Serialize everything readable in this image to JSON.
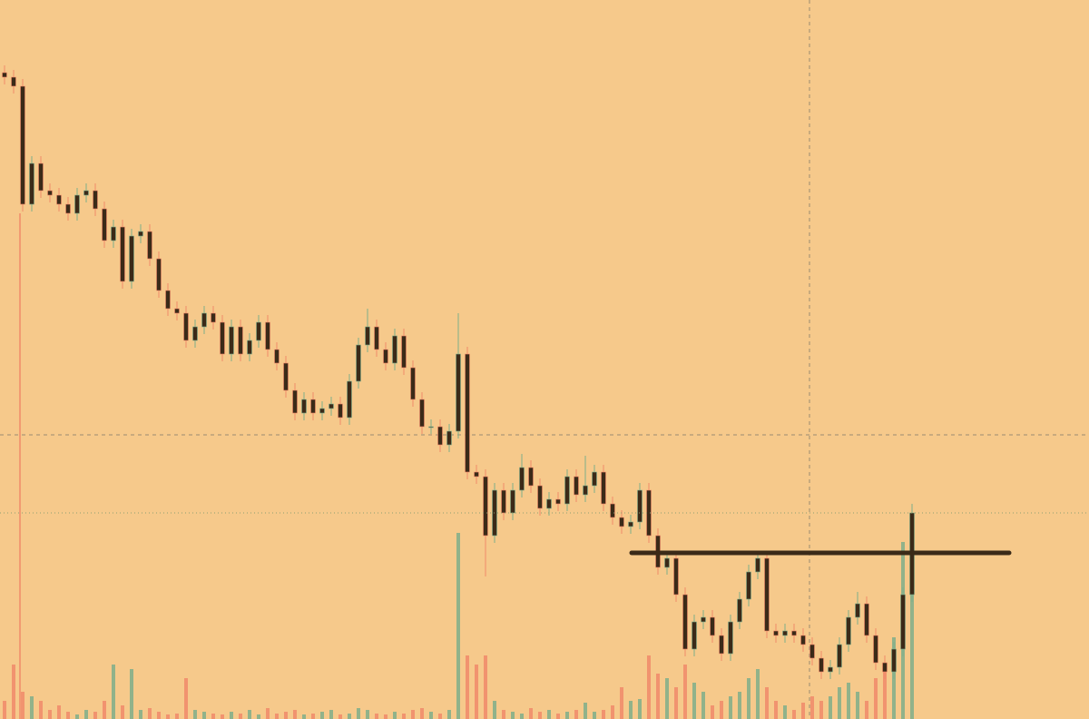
{
  "chart_data": {
    "type": "candlestick",
    "ylim": [
      0,
      792
    ],
    "vlim": [
      0,
      792
    ],
    "hline": 183,
    "up_color": "#7fae8a",
    "down_color": "#f08a6a",
    "body_color": "#3b2a18",
    "line_color": "#3b2a18",
    "open": [
      712,
      707,
      697,
      567,
      612,
      582,
      577,
      567,
      557,
      577,
      582,
      562,
      527,
      542,
      482,
      532,
      537,
      507,
      472,
      452,
      447,
      417,
      432,
      447,
      437,
      402,
      432,
      402,
      417,
      437,
      407,
      392,
      362,
      337,
      352,
      337,
      342,
      347,
      332,
      372,
      412,
      432,
      407,
      392,
      422,
      387,
      352,
      322,
      322,
      302,
      317,
      402,
      272,
      267,
      202,
      252,
      227,
      252,
      277,
      257,
      232,
      242,
      237,
      267,
      247,
      257,
      272,
      237,
      222,
      212,
      217,
      252,
      202,
      167,
      177,
      137,
      77,
      107,
      112,
      92,
      72,
      107,
      132,
      162,
      177,
      97,
      92,
      97,
      92,
      82,
      67,
      52,
      57,
      82,
      112,
      127,
      92,
      62,
      52,
      77,
      137
    ],
    "high": [
      720,
      715,
      705,
      620,
      620,
      590,
      585,
      575,
      585,
      590,
      590,
      570,
      550,
      550,
      540,
      545,
      545,
      515,
      480,
      460,
      455,
      440,
      455,
      455,
      445,
      440,
      440,
      425,
      445,
      445,
      415,
      400,
      370,
      360,
      360,
      350,
      355,
      355,
      380,
      420,
      452,
      440,
      415,
      430,
      430,
      395,
      360,
      330,
      330,
      325,
      447,
      410,
      280,
      275,
      260,
      260,
      260,
      292,
      285,
      265,
      250,
      250,
      275,
      275,
      290,
      280,
      280,
      245,
      230,
      225,
      260,
      260,
      210,
      185,
      185,
      145,
      115,
      120,
      120,
      100,
      115,
      140,
      170,
      185,
      185,
      105,
      105,
      105,
      100,
      90,
      75,
      65,
      90,
      120,
      140,
      135,
      100,
      70,
      85,
      145,
      237
    ],
    "low": [
      699,
      689,
      559,
      559,
      574,
      569,
      559,
      549,
      549,
      569,
      554,
      519,
      519,
      474,
      474,
      524,
      499,
      464,
      444,
      439,
      409,
      409,
      424,
      429,
      394,
      394,
      394,
      394,
      409,
      399,
      384,
      354,
      329,
      329,
      329,
      329,
      334,
      324,
      324,
      364,
      404,
      399,
      384,
      384,
      379,
      344,
      314,
      314,
      294,
      294,
      309,
      264,
      259,
      157,
      194,
      219,
      219,
      244,
      249,
      224,
      224,
      229,
      229,
      239,
      239,
      249,
      229,
      214,
      204,
      204,
      209,
      194,
      159,
      159,
      129,
      69,
      69,
      99,
      84,
      64,
      64,
      99,
      124,
      154,
      89,
      84,
      84,
      84,
      74,
      59,
      44,
      44,
      49,
      74,
      104,
      84,
      54,
      44,
      44,
      69,
      129
    ],
    "close": [
      707,
      697,
      567,
      612,
      582,
      577,
      567,
      557,
      577,
      582,
      562,
      527,
      542,
      482,
      532,
      537,
      507,
      472,
      452,
      447,
      417,
      432,
      447,
      437,
      402,
      432,
      402,
      417,
      437,
      407,
      392,
      362,
      337,
      352,
      337,
      342,
      347,
      332,
      372,
      412,
      432,
      407,
      392,
      422,
      387,
      352,
      322,
      322,
      302,
      317,
      402,
      272,
      267,
      202,
      252,
      227,
      252,
      277,
      257,
      232,
      242,
      237,
      267,
      247,
      257,
      272,
      237,
      222,
      212,
      217,
      252,
      202,
      167,
      177,
      137,
      77,
      107,
      112,
      92,
      72,
      107,
      132,
      162,
      177,
      97,
      92,
      97,
      92,
      82,
      67,
      52,
      57,
      82,
      112,
      127,
      92,
      62,
      52,
      77,
      137,
      227
    ],
    "volume": [
      20,
      60,
      30,
      25,
      20,
      10,
      15,
      8,
      5,
      10,
      8,
      20,
      60,
      15,
      55,
      10,
      12,
      8,
      5,
      6,
      45,
      10,
      8,
      6,
      5,
      8,
      6,
      10,
      5,
      12,
      6,
      8,
      10,
      5,
      6,
      8,
      10,
      5,
      6,
      12,
      10,
      6,
      5,
      8,
      6,
      10,
      12,
      8,
      6,
      10,
      205,
      70,
      60,
      70,
      20,
      10,
      8,
      6,
      12,
      8,
      10,
      6,
      8,
      10,
      18,
      8,
      10,
      15,
      35,
      20,
      22,
      70,
      50,
      45,
      35,
      60,
      40,
      30,
      15,
      20,
      25,
      30,
      45,
      55,
      35,
      20,
      15,
      10,
      18,
      25,
      20,
      25,
      35,
      40,
      30,
      20,
      45,
      60,
      90,
      195,
      140
    ]
  }
}
